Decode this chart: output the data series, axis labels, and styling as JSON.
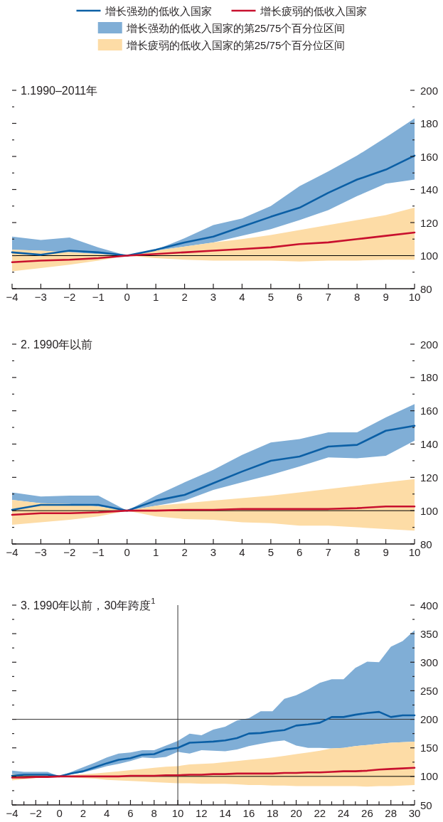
{
  "chart_data": [
    {
      "type": "line",
      "title": "1.1990–2011年",
      "legend": "top",
      "xlim": [
        -4,
        10
      ],
      "ylim": [
        80,
        200
      ],
      "xticks": [
        {
          "value": -4,
          "label": "−4"
        },
        {
          "value": -3,
          "label": "−3"
        },
        {
          "value": -2,
          "label": "−2"
        },
        {
          "value": -1,
          "label": "−1"
        },
        0,
        1,
        2,
        3,
        4,
        5,
        6,
        7,
        8,
        9,
        10
      ],
      "yticks": [
        80,
        {
          "value": 90,
          "label": null
        },
        100,
        {
          "value": 110,
          "label": null
        },
        120,
        {
          "value": 130,
          "label": null
        },
        140,
        {
          "value": 150,
          "label": null
        },
        160,
        {
          "value": 170,
          "label": null
        },
        180,
        {
          "value": 190,
          "label": null
        },
        200
      ],
      "x": [
        -4,
        -3,
        -2,
        -1,
        0,
        1,
        2,
        3,
        4,
        5,
        6,
        7,
        8,
        9,
        10
      ],
      "ref_lines": [
        {
          "axis": "y",
          "value": 100,
          "color": "#000000"
        }
      ],
      "series": [
        {
          "name": "增长强劲的低收入国家的第25/75个百分位区间",
          "color": "#80aed6",
          "values": [
            null,
            null,
            null,
            null,
            null,
            null,
            null,
            null,
            null,
            null,
            null,
            null,
            null,
            null,
            null
          ],
          "lower": [
            103.5,
            103,
            102,
            101,
            100,
            103,
            105.5,
            108,
            112,
            116,
            121.5,
            127.5,
            136,
            143.5,
            146
          ],
          "upper": [
            111.5,
            109.5,
            111,
            105,
            100,
            103.5,
            110.5,
            118.5,
            122.5,
            130,
            142,
            151,
            160.5,
            171.5,
            183
          ]
        },
        {
          "name": "增长疲弱的低收入国家的第25/75个百分位区间",
          "color": "#fddca6",
          "values": [
            null,
            null,
            null,
            null,
            null,
            null,
            null,
            null,
            null,
            null,
            null,
            null,
            null,
            null,
            null
          ],
          "lower": [
            90.5,
            92.5,
            94.5,
            97,
            100,
            98.5,
            97.5,
            97,
            97,
            97,
            96.5,
            97,
            97,
            97.5,
            97.5
          ],
          "upper": [
            103.5,
            103,
            102,
            101,
            100,
            103,
            105.5,
            108,
            110,
            112.5,
            115.5,
            118.5,
            121.5,
            124.5,
            129
          ]
        },
        {
          "name": "增长强劲的低收入国家",
          "color": "#0b5fa5",
          "values": [
            102,
            100.5,
            103,
            102,
            100,
            103.5,
            108,
            111.5,
            117.5,
            123.5,
            129,
            138,
            146,
            152,
            160.5
          ]
        },
        {
          "name": "增长疲弱的低收入国家",
          "color": "#c8102e",
          "values": [
            96,
            97,
            97.5,
            98.5,
            100,
            101,
            102,
            103,
            104,
            105,
            107,
            108,
            110,
            112,
            114
          ]
        }
      ]
    },
    {
      "type": "line",
      "title": "2. 1990年以前",
      "xlim": [
        -4,
        10
      ],
      "ylim": [
        80,
        200
      ],
      "xticks": [
        {
          "value": -4,
          "label": "−4"
        },
        {
          "value": -3,
          "label": "−3"
        },
        {
          "value": -2,
          "label": "−2"
        },
        {
          "value": -1,
          "label": "−1"
        },
        0,
        1,
        2,
        3,
        4,
        5,
        6,
        7,
        8,
        9,
        10
      ],
      "yticks": [
        80,
        {
          "value": 90,
          "label": null
        },
        100,
        {
          "value": 110,
          "label": null
        },
        120,
        {
          "value": 130,
          "label": null
        },
        140,
        {
          "value": 150,
          "label": null
        },
        160,
        {
          "value": 170,
          "label": null
        },
        180,
        {
          "value": 190,
          "label": null
        },
        200
      ],
      "x": [
        -4,
        -3,
        -2,
        -1,
        0,
        1,
        2,
        3,
        4,
        5,
        6,
        7,
        8,
        9,
        10
      ],
      "ref_lines": [
        {
          "axis": "y",
          "value": 100,
          "color": "#000000"
        }
      ],
      "series": [
        {
          "color": "#80aed6",
          "values": [
            null,
            null,
            null,
            null,
            null,
            null,
            null,
            null,
            null,
            null,
            null,
            null,
            null,
            null,
            null
          ],
          "lower": [
            106.5,
            104.5,
            104,
            102.5,
            100,
            103,
            106,
            112.5,
            117,
            121.5,
            126.5,
            132,
            131.5,
            133,
            142
          ],
          "upper": [
            111,
            108.5,
            109,
            109,
            100,
            109,
            117,
            124.5,
            133.5,
            141,
            143,
            147,
            147,
            156,
            164
          ]
        },
        {
          "color": "#fddca6",
          "values": [
            null,
            null,
            null,
            null,
            null,
            null,
            null,
            null,
            null,
            null,
            null,
            null,
            null,
            null,
            null
          ],
          "lower": [
            91.5,
            93,
            94.5,
            96.5,
            100,
            96.5,
            95,
            94.5,
            93,
            92.5,
            91,
            91,
            90,
            89,
            88
          ],
          "upper": [
            106.5,
            104.5,
            104,
            102.5,
            100,
            103,
            104.5,
            106,
            107.5,
            109,
            111,
            113,
            115,
            117,
            119
          ]
        },
        {
          "color": "#0b5fa5",
          "values": [
            100.5,
            103.5,
            103.5,
            103.5,
            100,
            106,
            109.5,
            116.5,
            123.5,
            130,
            132.5,
            138.5,
            139.5,
            148,
            151
          ]
        },
        {
          "color": "#c8102e",
          "values": [
            97.5,
            98.5,
            98.5,
            99,
            100,
            100,
            100.5,
            100.5,
            101,
            101,
            101,
            101,
            101.5,
            102.5,
            102.5
          ]
        }
      ]
    },
    {
      "type": "line",
      "title": "3. 1990年以前，30年跨度$^{1}$",
      "xlim": [
        -4,
        30
      ],
      "ylim": [
        50,
        400
      ],
      "xticks": [
        {
          "value": -4,
          "label": "−4"
        },
        {
          "value": -3,
          "label": null
        },
        {
          "value": -2,
          "label": "−2"
        },
        {
          "value": -1,
          "label": null
        },
        0,
        {
          "value": 1,
          "label": null
        },
        2,
        {
          "value": 3,
          "label": null
        },
        4,
        {
          "value": 5,
          "label": null
        },
        6,
        {
          "value": 7,
          "label": null
        },
        8,
        {
          "value": 9,
          "label": null
        },
        10,
        {
          "value": 11,
          "label": null
        },
        12,
        {
          "value": 13,
          "label": null
        },
        14,
        {
          "value": 15,
          "label": null
        },
        16,
        {
          "value": 17,
          "label": null
        },
        18,
        {
          "value": 19,
          "label": null
        },
        20,
        {
          "value": 21,
          "label": null
        },
        22,
        {
          "value": 23,
          "label": null
        },
        24,
        {
          "value": 25,
          "label": null
        },
        26,
        {
          "value": 27,
          "label": null
        },
        28,
        {
          "value": 29,
          "label": null
        },
        30
      ],
      "yticks": [
        50,
        {
          "value": 75,
          "label": null
        },
        100,
        {
          "value": 125,
          "label": null
        },
        150,
        {
          "value": 175,
          "label": null
        },
        200,
        {
          "value": 225,
          "label": null
        },
        250,
        {
          "value": 275,
          "label": null
        },
        300,
        {
          "value": 325,
          "label": null
        },
        350,
        {
          "value": 375,
          "label": null
        },
        400
      ],
      "x": [
        -4,
        -3,
        -2,
        -1,
        0,
        1,
        2,
        3,
        4,
        5,
        6,
        7,
        8,
        9,
        10,
        11,
        12,
        13,
        14,
        15,
        16,
        17,
        18,
        19,
        20,
        21,
        22,
        23,
        24,
        25,
        26,
        27,
        28,
        29,
        30
      ],
      "ref_lines": [
        {
          "axis": "y",
          "value": 100,
          "color": "#000000"
        },
        {
          "axis": "y",
          "value": 200,
          "color": "#333333"
        },
        {
          "axis": "x",
          "value": 10,
          "color": "#333333"
        }
      ],
      "series": [
        {
          "color": "#80aed6",
          "values": [
            null,
            null,
            null,
            null,
            null,
            null,
            null,
            null,
            null,
            null,
            null,
            null,
            null,
            null,
            null,
            null,
            null,
            null,
            null,
            null,
            null,
            null,
            null,
            null,
            null,
            null,
            null,
            null,
            null,
            null,
            null,
            null,
            null,
            null,
            null
          ],
          "lower": [
            104,
            103,
            103,
            102,
            100,
            104,
            107,
            112,
            118,
            122,
            127,
            133,
            132,
            134,
            143,
            140,
            146,
            145,
            144,
            147,
            153,
            157,
            161,
            163,
            154,
            150,
            150,
            149,
            150,
            153,
            155,
            157,
            159,
            160,
            161
          ],
          "upper": [
            110,
            108,
            108,
            108,
            100,
            108,
            116,
            124,
            133,
            140,
            142,
            146,
            146,
            154,
            162,
            175,
            172,
            182,
            187,
            198,
            202,
            214,
            214,
            236,
            242,
            252,
            264,
            270,
            270,
            290,
            301,
            300,
            327,
            337,
            356
          ]
        },
        {
          "color": "#fddca6",
          "values": [
            null,
            null,
            null,
            null,
            null,
            null,
            null,
            null,
            null,
            null,
            null,
            null,
            null,
            null,
            null,
            null,
            null,
            null,
            null,
            null,
            null,
            null,
            null,
            null,
            null,
            null,
            null,
            null,
            null,
            null,
            null,
            null,
            null,
            null,
            null
          ],
          "lower": [
            93,
            95,
            97,
            98,
            100,
            98,
            97,
            96,
            94,
            93,
            92,
            91,
            90,
            89,
            88,
            88,
            87,
            87,
            87,
            86,
            85,
            85,
            84,
            84,
            83,
            83,
            83,
            83,
            83,
            83,
            82,
            83,
            83,
            84,
            85
          ],
          "upper": [
            104,
            103,
            103,
            102,
            100,
            102,
            104,
            105,
            107,
            109,
            111,
            113,
            115,
            117,
            118,
            121,
            122,
            123,
            125,
            127,
            129,
            131,
            133,
            136,
            139,
            142,
            145,
            149,
            150,
            153,
            155,
            157,
            159,
            160,
            161
          ]
        },
        {
          "color": "#0b5fa5",
          "values": [
            101,
            103,
            103,
            103,
            100,
            105,
            109,
            116,
            123,
            129,
            132,
            138,
            139,
            147,
            150,
            159,
            160,
            161,
            163,
            167,
            175,
            176,
            179,
            181,
            189,
            191,
            194,
            204,
            204,
            208,
            211,
            213,
            204,
            207,
            207
          ]
        },
        {
          "color": "#c8102e",
          "values": [
            98,
            98,
            99,
            99,
            100,
            100,
            100,
            100,
            100,
            100,
            101,
            101,
            101,
            102,
            102,
            103,
            103,
            104,
            104,
            105,
            105,
            105,
            105,
            106,
            106,
            107,
            107,
            108,
            109,
            109,
            110,
            112,
            113,
            114,
            115
          ]
        }
      ]
    }
  ]
}
